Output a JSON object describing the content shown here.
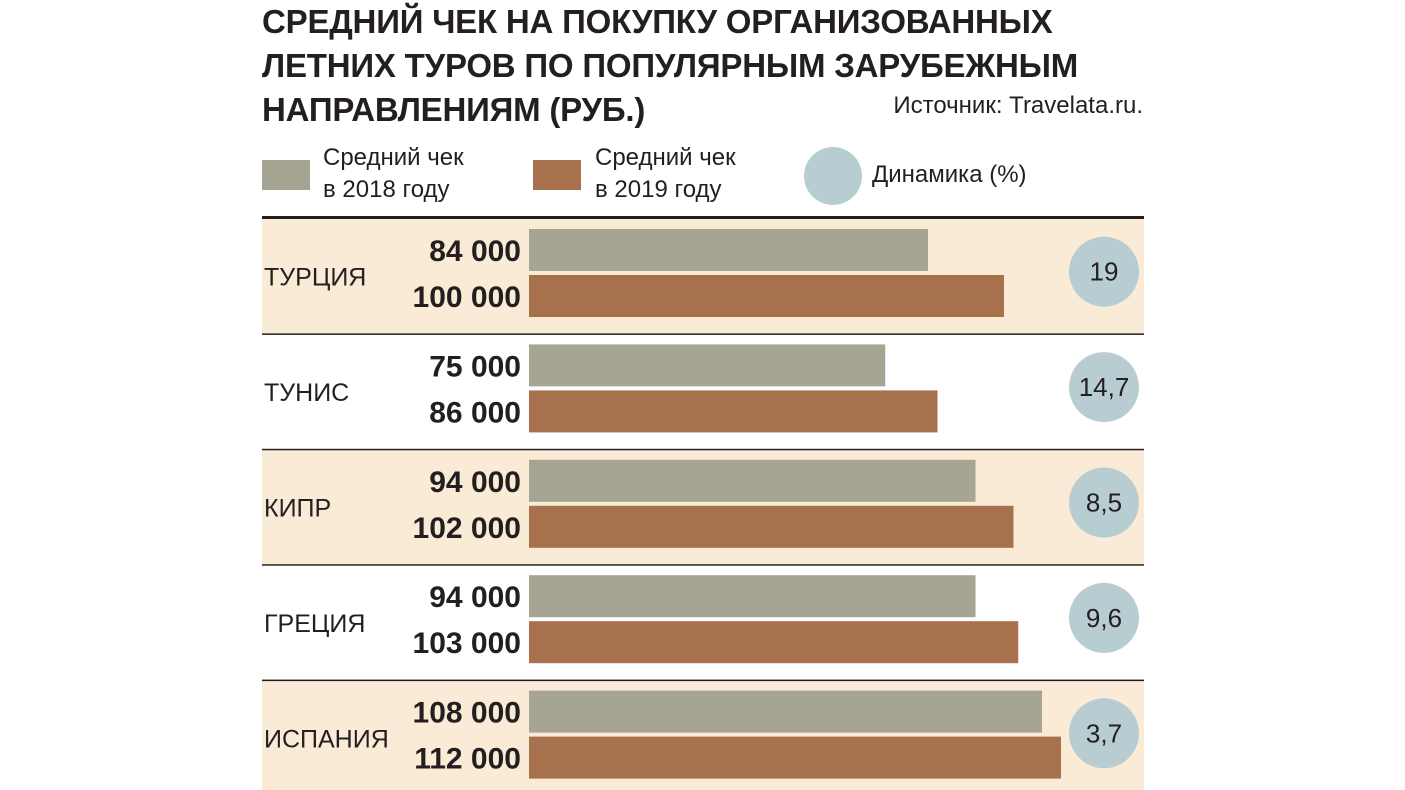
{
  "header": {
    "title_lines": [
      "СРЕДНИЙ ЧЕК НА ПОКУПКУ ОРГАНИЗОВАННЫХ",
      "ЛЕТНИХ ТУРОВ ПО ПОПУЛЯРНЫМ ЗАРУБЕЖНЫМ",
      "НАПРАВЛЕНИЯМ (РУБ.)"
    ],
    "source": "Источник: Travelata.ru."
  },
  "legend": {
    "avg2018_line1": "Средний чек",
    "avg2018_line2": "в 2018 году",
    "avg2019_line1": "Средний чек",
    "avg2019_line2": "в 2019 году",
    "dynamics": "Динамика (%)"
  },
  "colors": {
    "series_2018": "#a6a593",
    "series_2019": "#a6714c",
    "dynamics_circle": "#b8cdd1",
    "row_highlight": "#f9ebd6",
    "rule": "#231f20"
  },
  "chart_data": {
    "type": "bar",
    "orientation": "horizontal",
    "title": "СРЕДНИЙ ЧЕК НА ПОКУПКУ ОРГАНИЗОВАННЫХ ЛЕТНИХ ТУРОВ ПО ПОПУЛЯРНЫМ ЗАРУБЕЖНЫМ НАПРАВЛЕНИЯМ (РУБ.)",
    "xlim": [
      0,
      112000
    ],
    "categories": [
      "ТУРЦИЯ",
      "ТУНИС",
      "КИПР",
      "ГРЕЦИЯ",
      "ИСПАНИЯ"
    ],
    "series": [
      {
        "name": "Средний чек в 2018 году",
        "values": [
          84000,
          75000,
          94000,
          94000,
          108000
        ],
        "labels": [
          "84 000",
          "75 000",
          "94 000",
          "94 000",
          "108 000"
        ]
      },
      {
        "name": "Средний чек в 2019 году",
        "values": [
          100000,
          86000,
          102000,
          103000,
          112000
        ],
        "labels": [
          "100 000",
          "86 000",
          "102 000",
          "103 000",
          "112 000"
        ]
      }
    ],
    "dynamics": {
      "name": "Динамика (%)",
      "values": [
        19,
        14.7,
        8.5,
        9.6,
        3.7
      ],
      "labels": [
        "19",
        "14,7",
        "8,5",
        "9,6",
        "3,7"
      ]
    },
    "highlighted_rows": [
      true,
      false,
      true,
      false,
      true
    ]
  }
}
